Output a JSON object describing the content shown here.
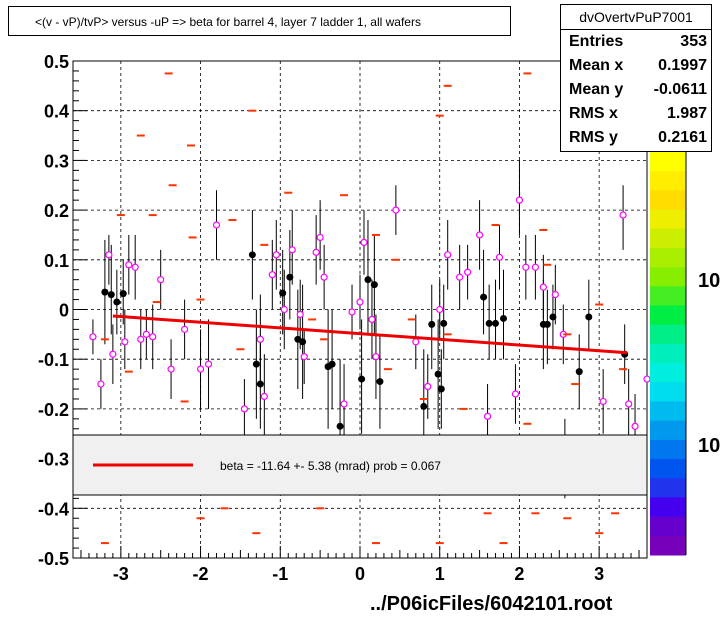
{
  "title": "<(v - vP)/tvP> versus  -uP => beta for barrel 4, layer 7 ladder 1, all wafers",
  "stats": {
    "name": "dvOvertvPuP7001",
    "rows": [
      {
        "label": "Entries",
        "value": "353"
      },
      {
        "label": "Mean x",
        "value": "0.1997"
      },
      {
        "label": "Mean y",
        "value": "-0.0611"
      },
      {
        "label": "RMS x",
        "value": "1.987"
      },
      {
        "label": "RMS y",
        "value": "0.2161"
      }
    ]
  },
  "legend": {
    "text": "beta =  -11.64 +-  5.38 (mrad) prob = 0.067",
    "line_color": "#ee0000"
  },
  "footer": "../P06icFiles/6042101.root",
  "colors": {
    "marker_open": "#ff00ff",
    "marker_dash": "#ff3300",
    "marker_filled": "#000000",
    "fit": "#ee0000"
  },
  "chart_data": {
    "type": "scatter",
    "xlim": [
      -3.6,
      3.6
    ],
    "ylim": [
      -0.5,
      0.5
    ],
    "xticks": [
      "-3",
      "-2",
      "-1",
      "0",
      "1",
      "2",
      "3"
    ],
    "yticks": [
      "-0.5",
      "-0.4",
      "-0.3",
      "-0.2",
      "-0.1",
      "0",
      "0.1",
      "0.2",
      "0.3",
      "0.4",
      "0.5"
    ],
    "xtick_values": [
      -3,
      -2,
      -1,
      0,
      1,
      2,
      3
    ],
    "ytick_values": [
      -0.5,
      -0.4,
      -0.3,
      -0.2,
      -0.1,
      0,
      0.1,
      0.2,
      0.3,
      0.4,
      0.5
    ],
    "colz_labels": [
      "10",
      "10"
    ],
    "grid": true,
    "fit_line": {
      "x": [
        -3.1,
        3.35
      ],
      "y": [
        -0.013,
        -0.087
      ]
    },
    "series": [
      {
        "marker": "filled-circle",
        "points": [
          {
            "x": -3.2,
            "y": 0.035,
            "lo": -0.07,
            "hi": 0.14
          },
          {
            "x": -3.12,
            "y": 0.03,
            "lo": -0.05,
            "hi": 0.13
          },
          {
            "x": -3.05,
            "y": 0.015,
            "lo": -0.05,
            "hi": 0.08
          },
          {
            "x": -2.97,
            "y": 0.032,
            "lo": -0.03,
            "hi": 0.1
          },
          {
            "x": -1.35,
            "y": 0.11,
            "lo": 0.02,
            "hi": 0.2
          },
          {
            "x": -1.3,
            "y": -0.11,
            "lo": -0.22,
            "hi": 0.0
          },
          {
            "x": -1.25,
            "y": -0.15,
            "lo": -0.24,
            "hi": -0.05
          },
          {
            "x": -0.97,
            "y": 0.033,
            "lo": -0.05,
            "hi": 0.12
          },
          {
            "x": -0.88,
            "y": 0.065,
            "lo": -0.02,
            "hi": 0.16
          },
          {
            "x": -0.78,
            "y": -0.06,
            "lo": -0.16,
            "hi": 0.04
          },
          {
            "x": -0.72,
            "y": -0.065,
            "lo": -0.18,
            "hi": 0.05
          },
          {
            "x": -0.4,
            "y": -0.115,
            "lo": -0.24,
            "hi": 0.0
          },
          {
            "x": -0.35,
            "y": -0.11,
            "lo": -0.2,
            "hi": 0.0
          },
          {
            "x": -0.25,
            "y": -0.235,
            "lo": -0.35,
            "hi": -0.1
          },
          {
            "x": 0.02,
            "y": -0.14,
            "lo": -0.25,
            "hi": -0.02
          },
          {
            "x": 0.1,
            "y": 0.06,
            "lo": -0.05,
            "hi": 0.18
          },
          {
            "x": 0.18,
            "y": 0.05,
            "lo": -0.05,
            "hi": 0.15
          },
          {
            "x": 0.25,
            "y": -0.145,
            "lo": -0.24,
            "hi": -0.05
          },
          {
            "x": 0.8,
            "y": -0.195,
            "lo": -0.3,
            "hi": -0.08
          },
          {
            "x": 0.9,
            "y": -0.03,
            "lo": -0.12,
            "hi": 0.05
          },
          {
            "x": 0.98,
            "y": -0.13,
            "lo": -0.24,
            "hi": -0.02
          },
          {
            "x": 1.02,
            "y": -0.16,
            "lo": -0.24,
            "hi": -0.08
          },
          {
            "x": 1.05,
            "y": -0.028,
            "lo": -0.1,
            "hi": 0.05
          },
          {
            "x": 1.55,
            "y": 0.025,
            "lo": -0.05,
            "hi": 0.12
          },
          {
            "x": 1.62,
            "y": -0.028,
            "lo": -0.1,
            "hi": 0.05
          },
          {
            "x": 1.7,
            "y": -0.028,
            "lo": -0.1,
            "hi": 0.06
          },
          {
            "x": 1.8,
            "y": -0.018,
            "lo": -0.1,
            "hi": 0.08
          },
          {
            "x": 2.3,
            "y": -0.03,
            "lo": -0.12,
            "hi": 0.06
          },
          {
            "x": 2.35,
            "y": -0.03,
            "lo": -0.11,
            "hi": 0.04
          },
          {
            "x": 2.42,
            "y": -0.015,
            "lo": -0.08,
            "hi": 0.05
          },
          {
            "x": 2.57,
            "y": -0.3,
            "lo": -0.38,
            "hi": -0.22
          },
          {
            "x": 2.75,
            "y": -0.125,
            "lo": -0.2,
            "hi": -0.05
          },
          {
            "x": 2.87,
            "y": -0.015,
            "lo": -0.08,
            "hi": 0.06
          },
          {
            "x": 3.32,
            "y": -0.09,
            "lo": -0.15,
            "hi": -0.03
          }
        ]
      },
      {
        "marker": "open-circle",
        "points": [
          {
            "x": -3.35,
            "y": -0.055,
            "lo": -0.09,
            "hi": -0.02
          },
          {
            "x": -3.25,
            "y": -0.15,
            "lo": -0.2,
            "hi": -0.1
          },
          {
            "x": -3.15,
            "y": 0.11,
            "lo": 0.05,
            "hi": 0.15
          },
          {
            "x": -3.1,
            "y": -0.09,
            "lo": -0.15,
            "hi": -0.03
          },
          {
            "x": -2.95,
            "y": -0.065,
            "lo": -0.12,
            "hi": 0.0
          },
          {
            "x": -2.9,
            "y": 0.09,
            "lo": 0.03,
            "hi": 0.15
          },
          {
            "x": -2.82,
            "y": 0.085,
            "lo": 0.02,
            "hi": 0.15
          },
          {
            "x": -2.75,
            "y": -0.06,
            "lo": -0.12,
            "hi": 0.0
          },
          {
            "x": -2.68,
            "y": -0.05,
            "lo": -0.1,
            "hi": 0.0
          },
          {
            "x": -2.6,
            "y": -0.055,
            "lo": -0.12,
            "hi": 0.01
          },
          {
            "x": -2.5,
            "y": 0.06,
            "lo": 0.0,
            "hi": 0.12
          },
          {
            "x": -2.37,
            "y": -0.12,
            "lo": -0.18,
            "hi": -0.06
          },
          {
            "x": -2.2,
            "y": -0.04,
            "lo": -0.1,
            "hi": 0.02
          },
          {
            "x": -2.0,
            "y": -0.12,
            "lo": -0.2,
            "hi": -0.04
          },
          {
            "x": -1.9,
            "y": -0.11,
            "lo": -0.2,
            "hi": -0.02
          },
          {
            "x": -1.8,
            "y": 0.17,
            "lo": 0.1,
            "hi": 0.24
          },
          {
            "x": -1.45,
            "y": -0.2,
            "lo": -0.26,
            "hi": -0.14
          },
          {
            "x": -1.25,
            "y": -0.06,
            "lo": -0.15,
            "hi": 0.03
          },
          {
            "x": -1.2,
            "y": -0.175,
            "lo": -0.26,
            "hi": -0.09
          },
          {
            "x": -1.1,
            "y": 0.07,
            "lo": 0.0,
            "hi": 0.14
          },
          {
            "x": -1.05,
            "y": 0.11,
            "lo": 0.04,
            "hi": 0.18
          },
          {
            "x": -0.95,
            "y": 0.0,
            "lo": -0.08,
            "hi": 0.08
          },
          {
            "x": -0.85,
            "y": 0.12,
            "lo": 0.05,
            "hi": 0.2
          },
          {
            "x": -0.75,
            "y": -0.01,
            "lo": -0.08,
            "hi": 0.06
          },
          {
            "x": -0.7,
            "y": -0.095,
            "lo": -0.15,
            "hi": -0.04
          },
          {
            "x": -0.55,
            "y": 0.115,
            "lo": 0.05,
            "hi": 0.19
          },
          {
            "x": -0.5,
            "y": 0.145,
            "lo": 0.08,
            "hi": 0.22
          },
          {
            "x": -0.45,
            "y": 0.065,
            "lo": 0.0,
            "hi": 0.13
          },
          {
            "x": -0.2,
            "y": -0.19,
            "lo": -0.27,
            "hi": -0.11
          },
          {
            "x": -0.1,
            "y": -0.005,
            "lo": -0.06,
            "hi": 0.05
          },
          {
            "x": 0.0,
            "y": 0.015,
            "lo": -0.04,
            "hi": 0.07
          },
          {
            "x": 0.05,
            "y": 0.135,
            "lo": 0.07,
            "hi": 0.2
          },
          {
            "x": 0.15,
            "y": -0.02,
            "lo": -0.1,
            "hi": 0.06
          },
          {
            "x": 0.2,
            "y": -0.095,
            "lo": -0.18,
            "hi": -0.01
          },
          {
            "x": 0.45,
            "y": 0.2,
            "lo": 0.15,
            "hi": 0.25
          },
          {
            "x": 0.7,
            "y": -0.065,
            "lo": -0.12,
            "hi": -0.01
          },
          {
            "x": 0.85,
            "y": -0.155,
            "lo": -0.22,
            "hi": -0.09
          },
          {
            "x": 1.0,
            "y": 0.0,
            "lo": -0.06,
            "hi": 0.06
          },
          {
            "x": 1.1,
            "y": 0.11,
            "lo": 0.04,
            "hi": 0.18
          },
          {
            "x": 1.25,
            "y": 0.065,
            "lo": 0.0,
            "hi": 0.13
          },
          {
            "x": 1.35,
            "y": 0.075,
            "lo": 0.02,
            "hi": 0.13
          },
          {
            "x": 1.5,
            "y": 0.15,
            "lo": 0.08,
            "hi": 0.22
          },
          {
            "x": 1.6,
            "y": -0.215,
            "lo": -0.28,
            "hi": -0.15
          },
          {
            "x": 1.75,
            "y": 0.105,
            "lo": 0.04,
            "hi": 0.17
          },
          {
            "x": 1.95,
            "y": -0.17,
            "lo": -0.23,
            "hi": -0.11
          },
          {
            "x": 2.0,
            "y": 0.22,
            "lo": 0.15,
            "hi": 0.3
          },
          {
            "x": 2.08,
            "y": 0.085,
            "lo": 0.02,
            "hi": 0.15
          },
          {
            "x": 2.2,
            "y": 0.085,
            "lo": 0.02,
            "hi": 0.15
          },
          {
            "x": 2.3,
            "y": 0.045,
            "lo": -0.02,
            "hi": 0.11
          },
          {
            "x": 2.45,
            "y": 0.03,
            "lo": -0.03,
            "hi": 0.09
          },
          {
            "x": 2.55,
            "y": -0.05,
            "lo": -0.11,
            "hi": 0.01
          },
          {
            "x": 3.05,
            "y": -0.185,
            "lo": -0.25,
            "hi": -0.12
          },
          {
            "x": 3.3,
            "y": 0.19,
            "lo": 0.12,
            "hi": 0.25
          },
          {
            "x": 3.37,
            "y": -0.19,
            "lo": -0.26,
            "hi": -0.12
          },
          {
            "x": 3.45,
            "y": -0.235,
            "lo": -0.3,
            "hi": -0.17
          },
          {
            "x": 3.6,
            "y": -0.14,
            "lo": -0.2,
            "hi": -0.08
          }
        ]
      },
      {
        "marker": "dash",
        "points": [
          {
            "x": -2.4,
            "y": 0.475
          },
          {
            "x": -1.35,
            "y": 0.4
          },
          {
            "x": -2.75,
            "y": 0.35
          },
          {
            "x": -2.12,
            "y": 0.33
          },
          {
            "x": -3.0,
            "y": 0.19
          },
          {
            "x": -2.6,
            "y": 0.19
          },
          {
            "x": -0.9,
            "y": 0.235
          },
          {
            "x": -0.2,
            "y": 0.23
          },
          {
            "x": -2.35,
            "y": 0.25
          },
          {
            "x": 1.0,
            "y": 0.39
          },
          {
            "x": 1.1,
            "y": 0.45
          },
          {
            "x": 2.1,
            "y": 0.475
          },
          {
            "x": 2.9,
            "y": 0.47
          },
          {
            "x": -2.1,
            "y": 0.145
          },
          {
            "x": -1.6,
            "y": 0.18
          },
          {
            "x": 0.45,
            "y": 0.1
          },
          {
            "x": -1.2,
            "y": 0.13
          },
          {
            "x": 0.2,
            "y": 0.15
          },
          {
            "x": 1.7,
            "y": 0.17
          },
          {
            "x": 2.3,
            "y": 0.16
          },
          {
            "x": 2.35,
            "y": 0.09
          },
          {
            "x": -2.55,
            "y": 0.015
          },
          {
            "x": -2.0,
            "y": 0.02
          },
          {
            "x": -0.6,
            "y": -0.02
          },
          {
            "x": 0.15,
            "y": -0.05
          },
          {
            "x": 0.65,
            "y": -0.02
          },
          {
            "x": 1.1,
            "y": -0.05
          },
          {
            "x": 1.85,
            "y": -0.07
          },
          {
            "x": 2.6,
            "y": -0.05
          },
          {
            "x": 3.0,
            "y": 0.01
          },
          {
            "x": -3.2,
            "y": -0.06
          },
          {
            "x": -2.9,
            "y": -0.125
          },
          {
            "x": -2.2,
            "y": -0.185
          },
          {
            "x": -1.5,
            "y": -0.08
          },
          {
            "x": -0.45,
            "y": -0.06
          },
          {
            "x": 0.35,
            "y": -0.12
          },
          {
            "x": 0.8,
            "y": -0.18
          },
          {
            "x": 1.3,
            "y": -0.2
          },
          {
            "x": 2.1,
            "y": -0.23
          },
          {
            "x": 2.7,
            "y": -0.15
          },
          {
            "x": 3.3,
            "y": -0.12
          },
          {
            "x": -2.0,
            "y": -0.42
          },
          {
            "x": -1.7,
            "y": -0.4
          },
          {
            "x": -0.5,
            "y": -0.4
          },
          {
            "x": 1.6,
            "y": -0.41
          },
          {
            "x": 2.2,
            "y": -0.41
          },
          {
            "x": 2.6,
            "y": -0.42
          },
          {
            "x": 3.2,
            "y": -0.41
          },
          {
            "x": -3.2,
            "y": -0.47
          },
          {
            "x": -1.3,
            "y": -0.45
          },
          {
            "x": 0.2,
            "y": -0.47
          },
          {
            "x": 1.0,
            "y": -0.47
          },
          {
            "x": 1.8,
            "y": -0.47
          },
          {
            "x": 3.0,
            "y": -0.45
          }
        ]
      }
    ]
  }
}
